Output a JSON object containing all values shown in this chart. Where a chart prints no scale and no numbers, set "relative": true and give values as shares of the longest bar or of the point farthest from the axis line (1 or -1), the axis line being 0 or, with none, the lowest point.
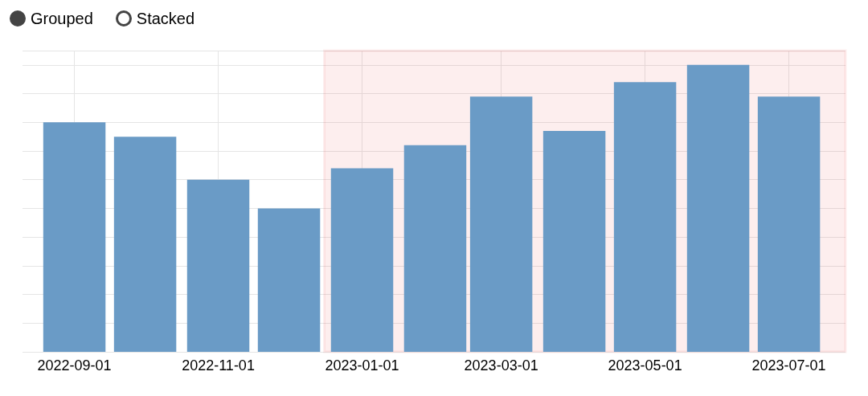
{
  "chart_data": {
    "type": "bar",
    "relative": true,
    "x": [
      "2022-09-01",
      "2022-10-01",
      "2022-11-01",
      "2022-12-01",
      "2023-01-01",
      "2023-02-01",
      "2023-03-01",
      "2023-04-01",
      "2023-05-01",
      "2023-06-01",
      "2023-07-01"
    ],
    "values": [
      0.8,
      0.75,
      0.6,
      0.5,
      0.64,
      0.72,
      0.89,
      0.77,
      0.94,
      1,
      0.89
    ],
    "color": "#6a9bc6",
    "xlim": [
      "2022-08-10",
      "2023-07-25"
    ],
    "xticks": [
      "2022-09-01",
      "2022-11-01",
      "2023-01-01",
      "2023-03-01",
      "2023-05-01",
      "2023-07-01"
    ],
    "grid": true,
    "bands": [
      {
        "axis": "x",
        "from": "2022-12-16",
        "to": "2023-07-25",
        "color": "#e8262b"
      }
    ],
    "annotations": [
      "Grouped",
      "Stacked"
    ]
  }
}
